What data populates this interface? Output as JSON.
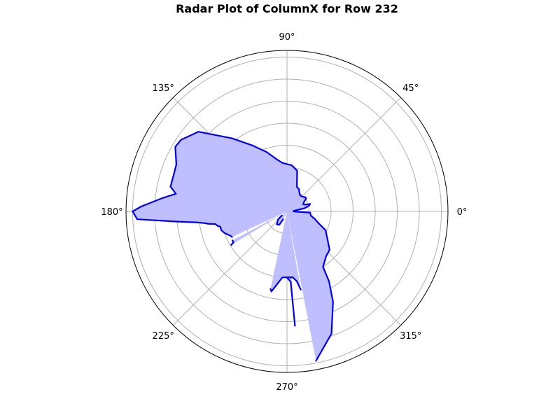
{
  "chart_data": {
    "type": "radar",
    "title": "Radar Plot of ColumnX for Row 232",
    "angle_tick_labels": [
      "0°",
      "45°",
      "90°",
      "135°",
      "180°",
      "225°",
      "270°",
      "315°"
    ],
    "angle_ticks_deg": [
      0,
      45,
      90,
      135,
      180,
      225,
      270,
      315
    ],
    "radial_grid_values": [
      1,
      2,
      3,
      4,
      5,
      6,
      7
    ],
    "rmax": 7.3,
    "radial_tick_labels_visible": false,
    "colors": {
      "line": "#0000ee",
      "fill": "#bfbfff",
      "grid": "#b0b0b0"
    },
    "segments": [
      [
        [
          5,
          0.3
        ],
        [
          10,
          0.8
        ],
        [
          13,
          0.95
        ],
        [
          15,
          1.05
        ],
        [
          18,
          1.1
        ],
        [
          20,
          0.9
        ],
        [
          24,
          0.8
        ],
        [
          30,
          0.9
        ],
        [
          34,
          1.05
        ],
        [
          38,
          1.05
        ],
        [
          45,
          0.95
        ],
        [
          52,
          0.95
        ],
        [
          58,
          1.05
        ],
        [
          62,
          1.15
        ],
        [
          68,
          1.2
        ],
        [
          76,
          1.9
        ],
        [
          84,
          2.1
        ],
        [
          95,
          2.2
        ],
        [
          101,
          2.4
        ],
        [
          109,
          2.85
        ],
        [
          118,
          3.4
        ],
        [
          127,
          4.15
        ],
        [
          138,
          5.4
        ],
        [
          146,
          5.8
        ],
        [
          150,
          5.85
        ],
        [
          157,
          5.45
        ],
        [
          162,
          5.4
        ],
        [
          168,
          5.4
        ],
        [
          171,
          5.1
        ],
        [
          174,
          5.7
        ],
        [
          178,
          6.6
        ],
        [
          180,
          7.0
        ],
        [
          183,
          6.8
        ],
        [
          185,
          5.2
        ],
        [
          186,
          4.6
        ],
        [
          187,
          4.1
        ],
        [
          188,
          3.8
        ],
        [
          189,
          3.6
        ],
        [
          190,
          3.3
        ],
        [
          192,
          3.2
        ],
        [
          193,
          3.1
        ],
        [
          196,
          3.1
        ],
        [
          199,
          3.0
        ],
        [
          201,
          2.9
        ],
        [
          203,
          2.8
        ],
        [
          205,
          2.75
        ]
      ],
      [
        [
          208,
          2.8
        ],
        [
          210,
          2.8
        ],
        [
          211,
          2.95
        ]
      ],
      [
        [
          219,
          0.3
        ],
        [
          222,
          0.55
        ],
        [
          232,
          0.75
        ],
        [
          240,
          0.7
        ],
        [
          244,
          0.4
        ]
      ],
      [
        [
          258,
          3.6
        ],
        [
          259,
          3.7
        ],
        [
          266,
          3.0
        ],
        [
          275,
          3.0
        ],
        [
          278,
          3.2
        ],
        [
          279,
          3.4
        ],
        [
          280,
          3.6
        ]
      ],
      [
        [
          281,
          6.9
        ],
        [
          290,
          5.9
        ],
        [
          297,
          4.6
        ],
        [
          301,
          3.7
        ],
        [
          303,
          3.0
        ],
        [
          311,
          2.7
        ],
        [
          318,
          2.6
        ],
        [
          334,
          1.95
        ],
        [
          340,
          1.5
        ],
        [
          345,
          1.3
        ],
        [
          350,
          1.1
        ],
        [
          357,
          1.05
        ],
        [
          359,
          0.3
        ]
      ],
      [
        [
          270,
          3.0
        ],
        [
          273,
          3.2
        ],
        [
          274,
          5.2
        ]
      ]
    ]
  }
}
